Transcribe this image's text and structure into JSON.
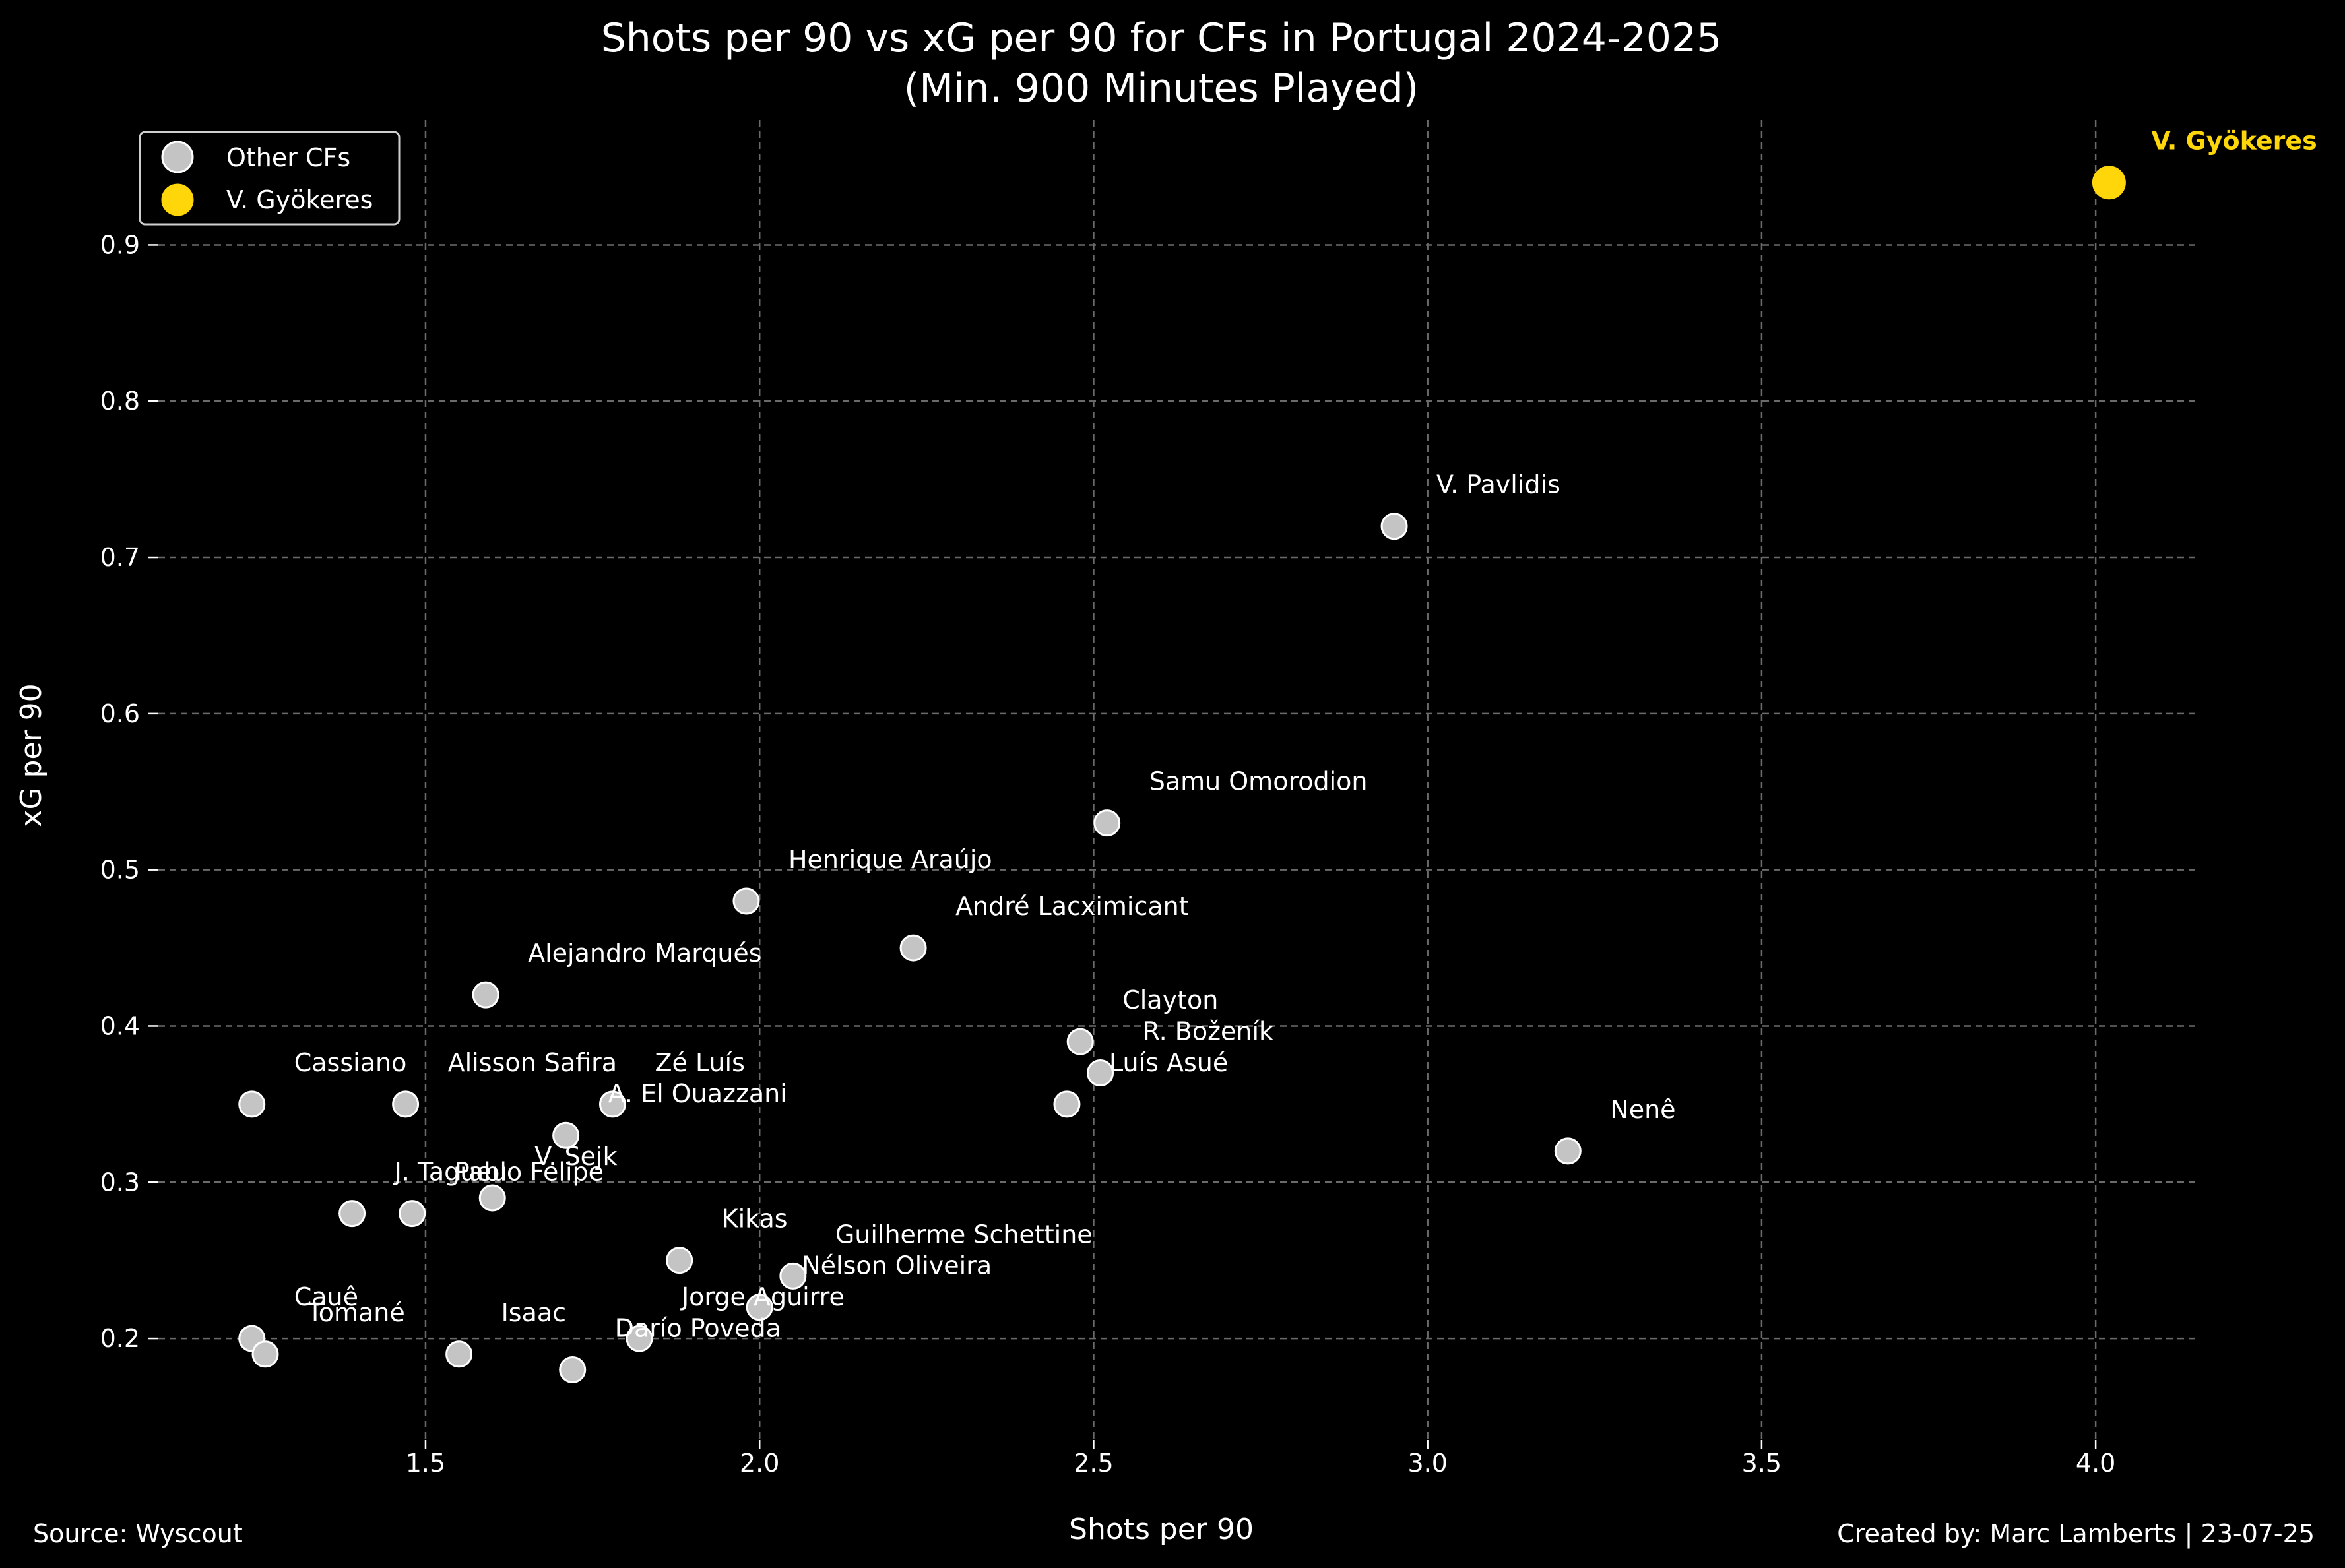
{
  "chart_data": {
    "type": "scatter",
    "title": "Shots per 90 vs xG per 90 for CFs in Portugal 2024-2025",
    "subtitle": "(Min. 900 Minutes Played)",
    "xlabel": "Shots per 90",
    "ylabel": "xG per 90",
    "xlim": [
      1.1,
      4.15
    ],
    "ylim": [
      0.135,
      0.98
    ],
    "x_ticks": [
      1.5,
      2.0,
      2.5,
      3.0,
      3.5,
      4.0
    ],
    "x_tick_labels": [
      "1.5",
      "2.0",
      "2.5",
      "3.0",
      "3.5",
      "4.0"
    ],
    "y_ticks": [
      0.2,
      0.3,
      0.4,
      0.5,
      0.6,
      0.7,
      0.8,
      0.9
    ],
    "y_tick_labels": [
      "0.2",
      "0.3",
      "0.4",
      "0.5",
      "0.6",
      "0.7",
      "0.8",
      "0.9"
    ],
    "grid": true,
    "legend_position": "top-left",
    "colors": {
      "background": "#000000",
      "other": "#c4c4c4",
      "highlight": "#FFD60A"
    },
    "series": [
      {
        "name": "Other CFs",
        "color": "#c4c4c4",
        "points": [
          {
            "label": "V. Pavlidis",
            "x": 2.95,
            "y": 0.72
          },
          {
            "label": "Samu Omorodion",
            "x": 2.52,
            "y": 0.53
          },
          {
            "label": "Henrique Araújo",
            "x": 1.98,
            "y": 0.48
          },
          {
            "label": "André Lacximicant",
            "x": 2.23,
            "y": 0.45
          },
          {
            "label": "Alejandro Marqués",
            "x": 1.59,
            "y": 0.42
          },
          {
            "label": "Clayton",
            "x": 2.48,
            "y": 0.39
          },
          {
            "label": "R. Boženík",
            "x": 2.51,
            "y": 0.37
          },
          {
            "label": "Luís Asué",
            "x": 2.46,
            "y": 0.35
          },
          {
            "label": "Cassiano",
            "x": 1.24,
            "y": 0.35
          },
          {
            "label": "Alisson Safira",
            "x": 1.47,
            "y": 0.35
          },
          {
            "label": "Zé Luís",
            "x": 1.78,
            "y": 0.35
          },
          {
            "label": "A. El Ouazzani",
            "x": 1.71,
            "y": 0.33
          },
          {
            "label": "Nenê",
            "x": 3.21,
            "y": 0.32
          },
          {
            "label": "V. Sejk",
            "x": 1.6,
            "y": 0.29
          },
          {
            "label": "J. Tagueu",
            "x": 1.39,
            "y": 0.28
          },
          {
            "label": "Pablo Felipe",
            "x": 1.48,
            "y": 0.28
          },
          {
            "label": "Kikas",
            "x": 1.88,
            "y": 0.25
          },
          {
            "label": "Guilherme Schettine",
            "x": 2.05,
            "y": 0.24
          },
          {
            "label": "Nélson Oliveira",
            "x": 2.0,
            "y": 0.22
          },
          {
            "label": "Jorge Aguirre",
            "x": 1.82,
            "y": 0.2
          },
          {
            "label": "Cauê",
            "x": 1.24,
            "y": 0.2
          },
          {
            "label": "Tomané",
            "x": 1.26,
            "y": 0.19
          },
          {
            "label": "Isaac",
            "x": 1.55,
            "y": 0.19
          },
          {
            "label": "Darío Poveda",
            "x": 1.72,
            "y": 0.18
          }
        ]
      },
      {
        "name": "V. Gyökeres",
        "color": "#FFD60A",
        "points": [
          {
            "label": "V. Gyökeres",
            "x": 4.02,
            "y": 0.94
          }
        ]
      }
    ]
  },
  "footer": {
    "source": "Source: Wyscout",
    "credit": "Created by: Marc Lamberts | 23-07-25"
  }
}
